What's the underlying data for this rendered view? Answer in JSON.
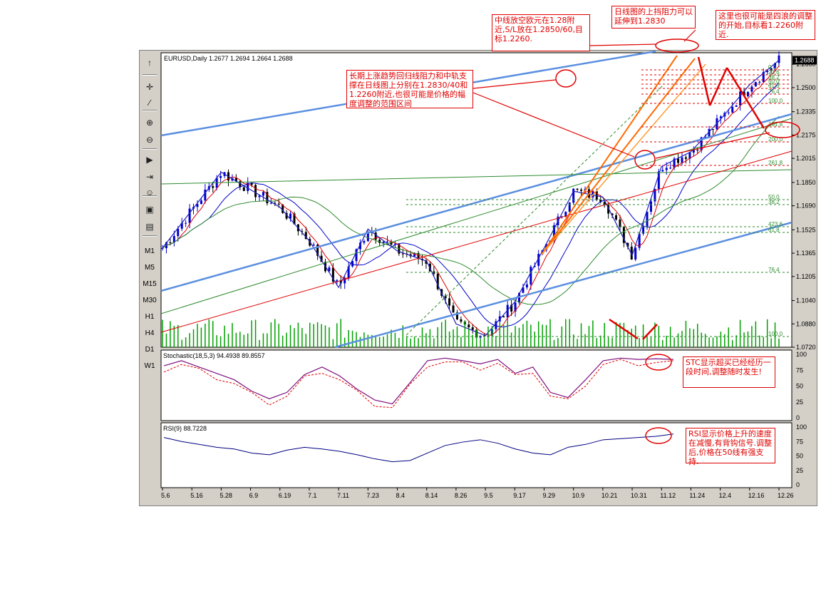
{
  "window": {
    "header_text": "EURUSD,Daily  1.2677 1.2694 1.2664 1.2688",
    "last_price": "1.2688"
  },
  "toolbar": {
    "icons": [
      "cursor-icon",
      "crosshair-icon",
      "line-icon",
      "zoom-in-icon",
      "zoom-out-icon",
      "autoscroll-icon",
      "chart-shift-icon",
      "expert-icon",
      "template-icon",
      "properties-icon"
    ],
    "timeframes": [
      "M1",
      "M5",
      "M15",
      "M30",
      "H1",
      "H4",
      "D1",
      "W1"
    ]
  },
  "price_axis": [
    "1.2660",
    "1.2500",
    "1.2335",
    "1.2175",
    "1.2015",
    "1.1850",
    "1.1690",
    "1.1525",
    "1.1365",
    "1.1205",
    "1.1040",
    "1.0880",
    "1.0720"
  ],
  "date_axis": [
    "5.6",
    "5.16",
    "5.28",
    "6.9",
    "6.19",
    "7.1",
    "7.11",
    "7.23",
    "8.4",
    "8.14",
    "8.26",
    "9.5",
    "9.17",
    "9.29",
    "10.9",
    "10.21",
    "10.31",
    "11.12",
    "11.24",
    "12.4",
    "12.16",
    "12.26"
  ],
  "fib_upper": [
    "0.0",
    "23.6",
    "38.2",
    "50.0",
    "61.8",
    "76.4",
    "100.0",
    "161.8",
    "200.0",
    "261.8"
  ],
  "fib_lower": [
    "50.0",
    "38.2",
    "423.6",
    "61.8",
    "76.4",
    "100.0"
  ],
  "stochastic": {
    "label": "Stochastic(18,5,3)",
    "value1": "94.4938",
    "value2": "89.8557",
    "axis": [
      "100",
      "75",
      "50",
      "25",
      "0"
    ]
  },
  "rsi": {
    "label": "RSI(9)",
    "value": "88.7228",
    "axis": [
      "100",
      "75",
      "50",
      "25",
      "0"
    ]
  },
  "annotations": {
    "note1": "中线放空欧元在1.28附近,S/L放在1.2850/60,目标1.2260.",
    "note2": "日线图的上挡阻力可以延伸到1.2830",
    "note3": "这里也很可能是四浪的调整的开始,目标看1.2260附近.",
    "note4": "长期上涨趋势回归线阻力和中轨支撑在日线图上分别在1.2830/40和1.2260附近,也很可能是价格的幅度调整的范围区间",
    "note5": "STC显示超买已经经历一段时间,调整随时发生!",
    "note6": "RSI显示价格上升的速度在减慢,有背钩信号.调整后,价格在50线有强支持."
  },
  "colors": {
    "bull": "#0000cc",
    "bear": "#000000",
    "volume": "#00a000",
    "channel": "#5b8fe0",
    "trend_red": "#e00000",
    "trend_green": "#2e8b2e",
    "note_red": "#e00000",
    "stoch_main": "#7d0f7d",
    "stoch_signal": "#e00000",
    "rsi": "#000080"
  },
  "chart_data": {
    "type": "candlestick",
    "symbol": "EURUSD",
    "timeframe": "Daily",
    "ylim": [
      1.072,
      1.27
    ],
    "current": {
      "open": 1.2677,
      "high": 1.2694,
      "low": 1.2664,
      "close": 1.2688
    },
    "swing_points": [
      {
        "date": "5.6",
        "close": 1.14
      },
      {
        "date": "5.28",
        "close": 1.192
      },
      {
        "date": "6.19",
        "close": 1.168
      },
      {
        "date": "7.1",
        "close": 1.145
      },
      {
        "date": "7.11",
        "close": 1.113
      },
      {
        "date": "7.23",
        "close": 1.153
      },
      {
        "date": "8.4",
        "close": 1.138
      },
      {
        "date": "8.14",
        "close": 1.131
      },
      {
        "date": "8.26",
        "close": 1.088
      },
      {
        "date": "9.5",
        "close": 1.08
      },
      {
        "date": "9.17",
        "close": 1.103
      },
      {
        "date": "9.29",
        "close": 1.14
      },
      {
        "date": "10.9",
        "close": 1.179
      },
      {
        "date": "10.21",
        "close": 1.175
      },
      {
        "date": "10.31",
        "close": 1.135
      },
      {
        "date": "11.12",
        "close": 1.196
      },
      {
        "date": "11.24",
        "close": 1.206
      },
      {
        "date": "12.4",
        "close": 1.228
      },
      {
        "date": "12.16",
        "close": 1.252
      },
      {
        "date": "12.26",
        "close": 1.2688
      }
    ],
    "stochastic_points": [
      82,
      90,
      80,
      70,
      60,
      42,
      30,
      40,
      68,
      80,
      66,
      45,
      28,
      22,
      55,
      90,
      94,
      90,
      85,
      92,
      70,
      80,
      40,
      32,
      60,
      90,
      94,
      92,
      93,
      92
    ],
    "rsi_points": [
      82,
      75,
      70,
      65,
      62,
      55,
      52,
      60,
      65,
      62,
      58,
      52,
      45,
      40,
      42,
      55,
      68,
      74,
      78,
      72,
      62,
      55,
      52,
      65,
      70,
      78,
      80,
      82,
      84,
      88
    ]
  }
}
